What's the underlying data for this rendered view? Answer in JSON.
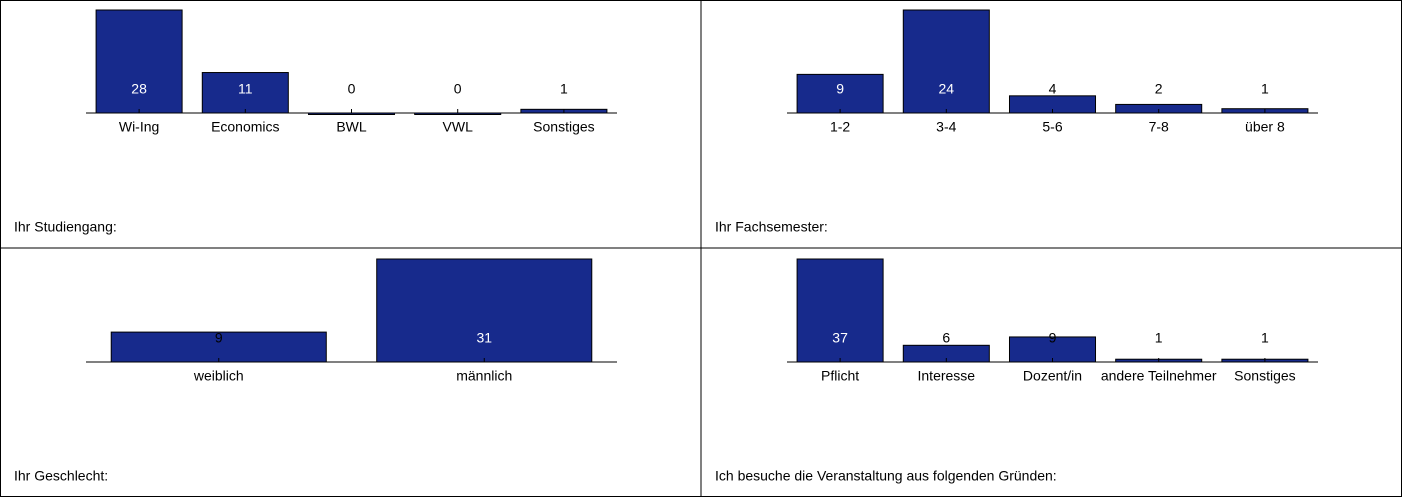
{
  "chart_data": [
    {
      "type": "bar",
      "title": "Ihr Studiengang:",
      "categories": [
        "Wi-Ing",
        "Economics",
        "BWL",
        "VWL",
        "Sonstiges"
      ],
      "values": [
        28,
        11,
        0,
        0,
        1
      ],
      "color": "#172a8c",
      "ylim": [
        0,
        28
      ]
    },
    {
      "type": "bar",
      "title": "Ihr Fachsemester:",
      "categories": [
        "1-2",
        "3-4",
        "5-6",
        "7-8",
        "über 8"
      ],
      "values": [
        9,
        24,
        4,
        2,
        1
      ],
      "color": "#172a8c",
      "ylim": [
        0,
        24
      ]
    },
    {
      "type": "bar",
      "title": "Ihr Geschlecht:",
      "categories": [
        "weiblich",
        "männlich"
      ],
      "values": [
        9,
        31
      ],
      "color": "#172a8c",
      "ylim": [
        0,
        31
      ]
    },
    {
      "type": "bar",
      "title": "Ich besuche die Veranstaltung aus folgenden Gründen:",
      "categories": [
        "Pflicht",
        "Interesse",
        "Dozent/in",
        "andere Teilnehmer",
        "Sonstiges"
      ],
      "values": [
        37,
        6,
        9,
        1,
        1
      ],
      "color": "#172a8c",
      "ylim": [
        0,
        37
      ]
    }
  ]
}
